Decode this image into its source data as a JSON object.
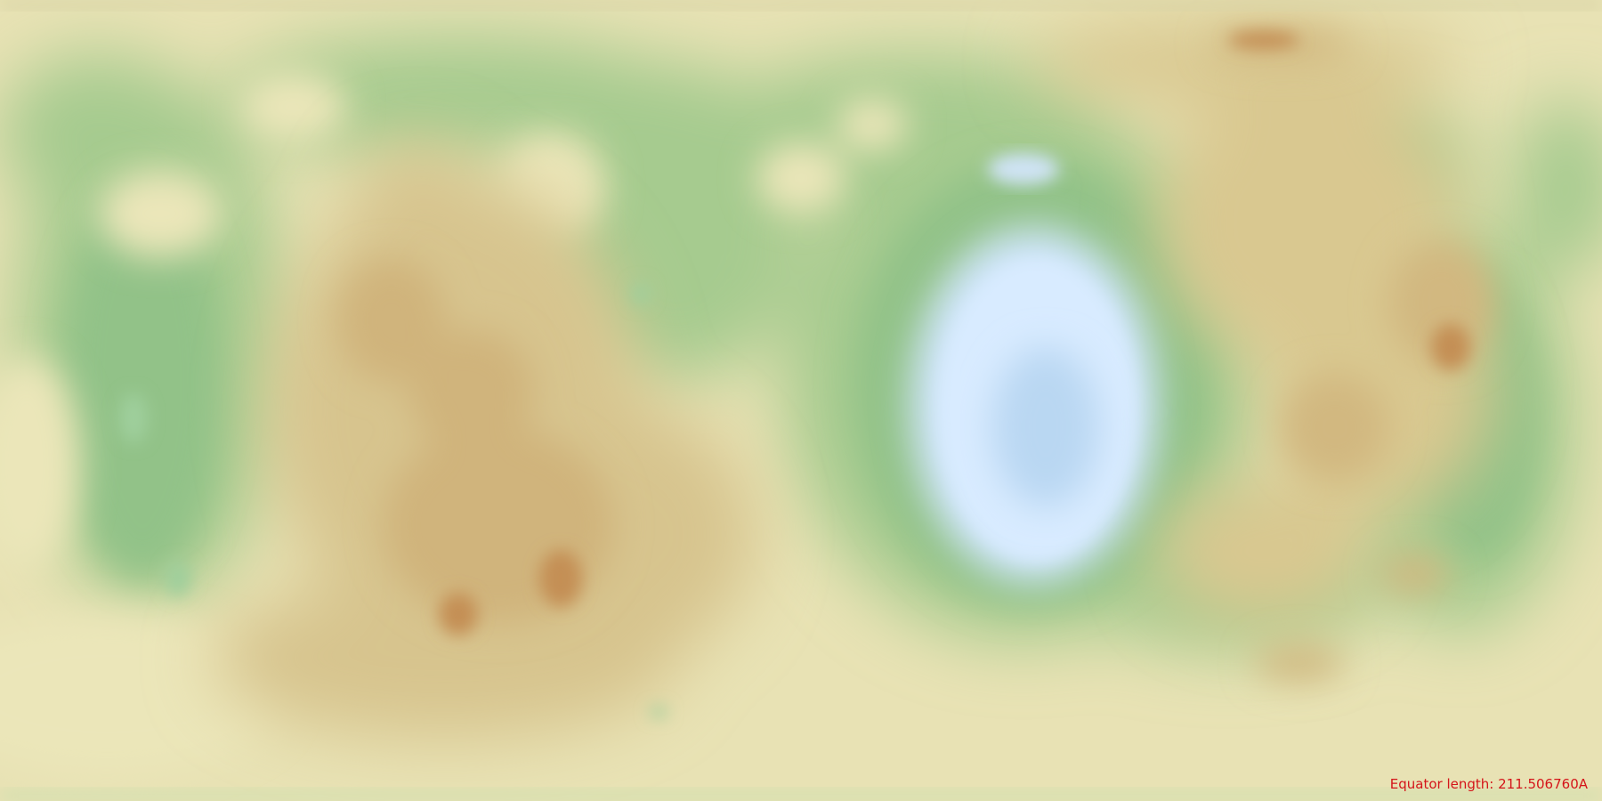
{
  "map": {
    "projection": "equirectangular",
    "palette": {
      "water_deep": "#a9cdee",
      "water_shallow": "#d8ebff",
      "lowland_green": "#95c48b",
      "plain_green": "#b9d49a",
      "pale_yellow": "#eae5b8",
      "sand": "#dccf9d",
      "highland_tan": "#cfb27a",
      "peak_brown": "#c38f55"
    },
    "status": {
      "equator_label": "Equator length: 211.506760A"
    }
  }
}
